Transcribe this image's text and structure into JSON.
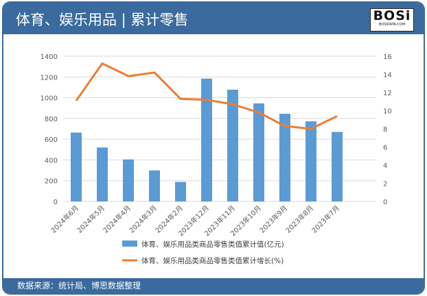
{
  "header": {
    "title": "体育、娱乐用品 | 累计零售",
    "logo_text": "BOSi",
    "logo_sub": "BOSIDATA.COM"
  },
  "footer": {
    "source": "数据来源：统计局、博思数据整理"
  },
  "chart_data": {
    "type": "bar+line",
    "categories": [
      "2024年6月",
      "2024年5月",
      "2024年4月",
      "2024年3月",
      "2024年2月",
      "2023年12月",
      "2023年11月",
      "2023年10月",
      "2023年9月",
      "2023年8月",
      "2023年7月"
    ],
    "series": [
      {
        "name": "体育、娱乐用品类商品零售类值累计值(亿元)",
        "type": "bar",
        "axis": "left",
        "color": "#5b9bd5",
        "values": [
          664,
          520,
          405,
          299,
          188,
          1184,
          1077,
          945,
          845,
          772,
          670
        ]
      },
      {
        "name": "体育、娱乐用品类商品零售类值累计增长(%)",
        "type": "line",
        "axis": "right",
        "color": "#ed7d31",
        "values": [
          11.1,
          15.2,
          13.8,
          14.2,
          11.3,
          11.2,
          10.7,
          9.8,
          8.3,
          8.0,
          9.4
        ]
      }
    ],
    "ylim_left": [
      0,
      1400
    ],
    "yticks_left": [
      "0",
      "200",
      "400",
      "600",
      "800",
      "1000",
      "1200",
      "1400"
    ],
    "ylim_right": [
      0,
      16
    ],
    "yticks_right": [
      "0",
      "2",
      "4",
      "6",
      "8",
      "10",
      "12",
      "14",
      "16"
    ],
    "grid": true,
    "legend": "bottom"
  }
}
